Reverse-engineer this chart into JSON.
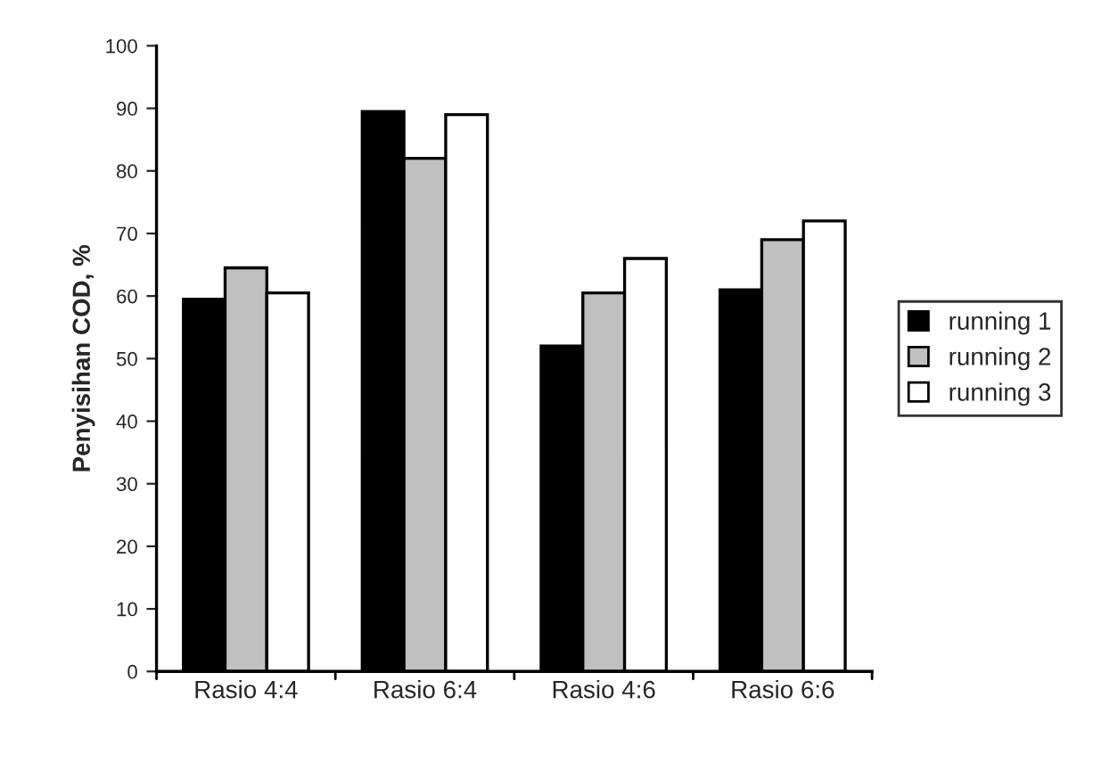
{
  "chart_data": {
    "type": "bar",
    "ylabel": "Penyisihan COD, %",
    "categories": [
      "Rasio 4:4",
      "Rasio 6:4",
      "Rasio 4:6",
      "Rasio 6:6"
    ],
    "series": [
      {
        "name": "running 1",
        "color": "#000000",
        "values": [
          59.5,
          89.5,
          52,
          61
        ]
      },
      {
        "name": "running 2",
        "color": "#c0c0c0",
        "values": [
          64.5,
          82,
          60.5,
          69
        ]
      },
      {
        "name": "running 3",
        "color": "#ffffff",
        "values": [
          60.5,
          89,
          66,
          72
        ]
      }
    ],
    "ylim": [
      0,
      100
    ],
    "yticks": [
      0,
      10,
      20,
      30,
      40,
      50,
      60,
      70,
      80,
      90,
      100
    ],
    "grid": false,
    "legend": "right"
  }
}
